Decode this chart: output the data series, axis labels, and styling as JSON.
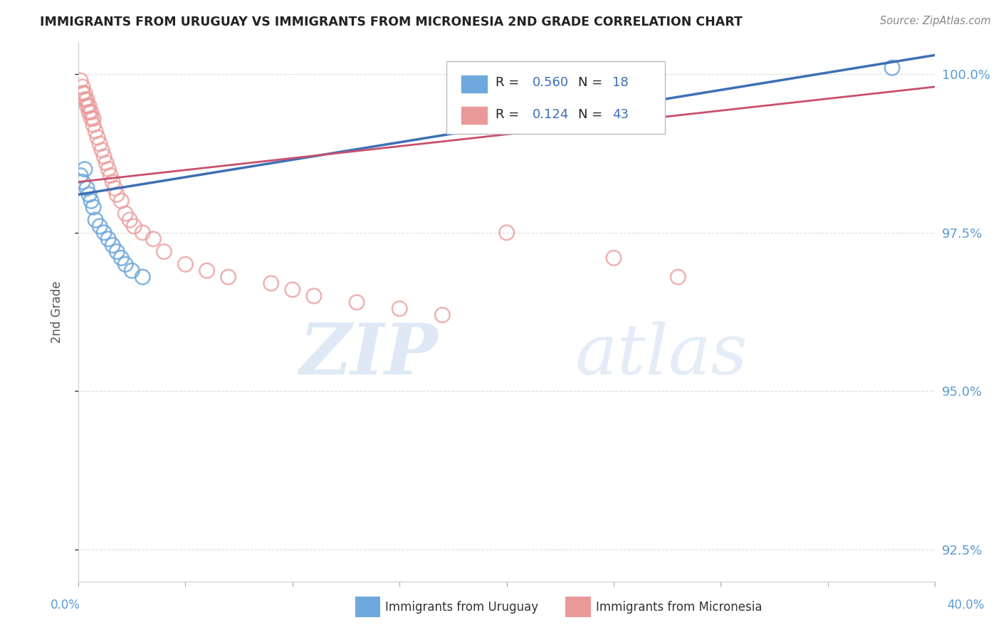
{
  "title": "IMMIGRANTS FROM URUGUAY VS IMMIGRANTS FROM MICRONESIA 2ND GRADE CORRELATION CHART",
  "source": "Source: ZipAtlas.com",
  "xlabel_uruguay": "Immigrants from Uruguay",
  "xlabel_micronesia": "Immigrants from Micronesia",
  "ylabel": "2nd Grade",
  "watermark_zip": "ZIP",
  "watermark_atlas": "atlas",
  "xlim": [
    0.0,
    0.4
  ],
  "ylim": [
    0.92,
    1.005
  ],
  "yticks": [
    0.925,
    0.95,
    0.975,
    1.0
  ],
  "ytick_labels": [
    "92.5%",
    "95.0%",
    "97.5%",
    "100.0%"
  ],
  "R_uruguay": 0.56,
  "N_uruguay": 18,
  "R_micronesia": 0.124,
  "N_micronesia": 43,
  "color_uruguay": "#6fa8dc",
  "color_micronesia": "#ea9999",
  "line_color_uruguay": "#3d6fb5",
  "line_color_micronesia": "#c94f6d",
  "uruguay_x": [
    0.001,
    0.002,
    0.003,
    0.004,
    0.005,
    0.006,
    0.007,
    0.008,
    0.01,
    0.012,
    0.014,
    0.016,
    0.018,
    0.02,
    0.022,
    0.025,
    0.03,
    0.38
  ],
  "uruguay_y": [
    0.984,
    0.983,
    0.985,
    0.982,
    0.981,
    0.98,
    0.979,
    0.977,
    0.976,
    0.975,
    0.974,
    0.973,
    0.972,
    0.971,
    0.97,
    0.969,
    0.968,
    1.001
  ],
  "micronesia_x": [
    0.001,
    0.002,
    0.002,
    0.003,
    0.003,
    0.004,
    0.004,
    0.005,
    0.005,
    0.006,
    0.006,
    0.007,
    0.007,
    0.008,
    0.009,
    0.01,
    0.011,
    0.012,
    0.013,
    0.014,
    0.015,
    0.016,
    0.017,
    0.018,
    0.02,
    0.022,
    0.024,
    0.026,
    0.03,
    0.035,
    0.04,
    0.05,
    0.06,
    0.07,
    0.09,
    0.1,
    0.11,
    0.13,
    0.15,
    0.17,
    0.2,
    0.25,
    0.28
  ],
  "micronesia_y": [
    0.999,
    0.998,
    0.997,
    0.997,
    0.996,
    0.996,
    0.995,
    0.995,
    0.994,
    0.994,
    0.993,
    0.993,
    0.992,
    0.991,
    0.99,
    0.989,
    0.988,
    0.987,
    0.986,
    0.985,
    0.984,
    0.983,
    0.982,
    0.981,
    0.98,
    0.978,
    0.977,
    0.976,
    0.975,
    0.974,
    0.972,
    0.97,
    0.969,
    0.968,
    0.967,
    0.966,
    0.965,
    0.964,
    0.963,
    0.962,
    0.975,
    0.971,
    0.968
  ],
  "trendline_uruguay_x0": 0.0,
  "trendline_uruguay_y0": 0.981,
  "trendline_uruguay_x1": 0.4,
  "trendline_uruguay_y1": 1.003,
  "trendline_micronesia_x0": 0.0,
  "trendline_micronesia_y0": 0.983,
  "trendline_micronesia_x1": 0.4,
  "trendline_micronesia_y1": 0.998,
  "background_color": "#ffffff",
  "grid_color": "#dddddd"
}
